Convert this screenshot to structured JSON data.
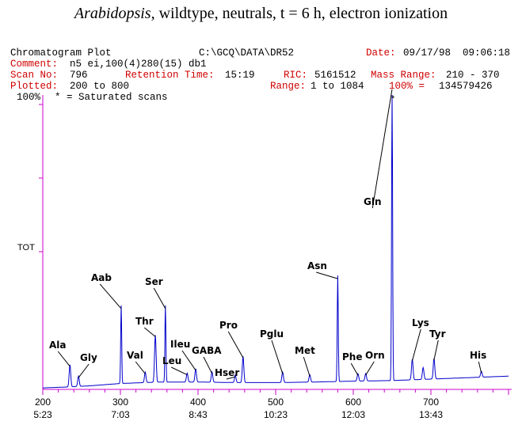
{
  "title": {
    "italic": "Arabidopsis",
    "rest": ", wildtype, neutrals, t = 6 h, electron ionization"
  },
  "header": {
    "plot_name": "Chromatogram Plot",
    "path": "C:\\GCQ\\DATA\\DR52",
    "date_label": "Date:",
    "date_value": "09/17/98  09:06:18",
    "comment_label": "Comment:",
    "comment_value": "n5 ei,100(4)280(15) db1",
    "scan_label": "Scan No:",
    "scan_value": "796",
    "rt_label": "Retention Time:",
    "rt_value": "15:19",
    "ric_label": "RIC:",
    "ric_value": "5161512",
    "mass_label": "Mass Range:",
    "mass_value": "210 - 370",
    "plotted_label": "Plotted:",
    "plotted_value": "200 to 800",
    "range_label": "Range:",
    "range_value": "1 to 1084",
    "pct_label": "100% =",
    "pct_value": "134579426",
    "scale_label": "100%",
    "saturated_note": "* = Saturated scans"
  },
  "colors": {
    "trace": "#0000cc",
    "axis": "#cc00cc",
    "header_red": "#d00000"
  },
  "chart_data": {
    "type": "line",
    "ylabel": "TOT",
    "xlim": [
      200,
      800
    ],
    "ylim": [
      0,
      100
    ],
    "x_ticks": [
      {
        "scan": "200",
        "time": "5:23"
      },
      {
        "scan": "300",
        "time": "7:03"
      },
      {
        "scan": "400",
        "time": "8:43"
      },
      {
        "scan": "500",
        "time": "10:23"
      },
      {
        "scan": "600",
        "time": "12:03"
      },
      {
        "scan": "700",
        "time": "13:43"
      }
    ],
    "baseline": [
      [
        200,
        0.5
      ],
      [
        230,
        0.8
      ],
      [
        260,
        1.2
      ],
      [
        300,
        2.0
      ],
      [
        350,
        2.5
      ],
      [
        400,
        2.5
      ],
      [
        450,
        2.3
      ],
      [
        500,
        2.3
      ],
      [
        550,
        2.5
      ],
      [
        600,
        2.8
      ],
      [
        650,
        3.0
      ],
      [
        700,
        3.5
      ],
      [
        750,
        4.0
      ],
      [
        800,
        4.5
      ]
    ],
    "peaks": [
      {
        "label": "Ala",
        "scan": 235,
        "height": 7.5
      },
      {
        "label": "Gly",
        "scan": 246,
        "height": 3.5
      },
      {
        "label": "Aab",
        "scan": 301,
        "height": 26.5
      },
      {
        "label": "Val",
        "scan": 332,
        "height": 3.5
      },
      {
        "label": "Thr",
        "scan": 345,
        "height": 16.0
      },
      {
        "label": "Ser",
        "scan": 358,
        "height": 26.0
      },
      {
        "label": "Leu",
        "scan": 386,
        "height": 3.0
      },
      {
        "label": "Ileu",
        "scan": 397,
        "height": 4.5
      },
      {
        "label": "GABA",
        "scan": 418,
        "height": 3.5
      },
      {
        "label": "Hser",
        "scan": 448,
        "height": 2.5
      },
      {
        "label": "Pro",
        "scan": 458,
        "height": 9.0
      },
      {
        "label": "Pglu",
        "scan": 509,
        "height": 3.5
      },
      {
        "label": "Met",
        "scan": 544,
        "height": 2.5
      },
      {
        "label": "Asn",
        "scan": 580,
        "height": 36.0
      },
      {
        "label": "Phe",
        "scan": 606,
        "height": 2.5
      },
      {
        "label": "Orn",
        "scan": 616,
        "height": 2.5
      },
      {
        "label": "Gln",
        "scan": 650,
        "height": 100.0
      },
      {
        "label": "Lys",
        "scan": 676,
        "height": 7.0
      },
      {
        "label": "",
        "scan": 690,
        "height": 4.0
      },
      {
        "label": "Tyr",
        "scan": 704,
        "height": 7.0
      },
      {
        "label": "His",
        "scan": 765,
        "height": 2.0
      }
    ],
    "saturated_marker": "*"
  }
}
